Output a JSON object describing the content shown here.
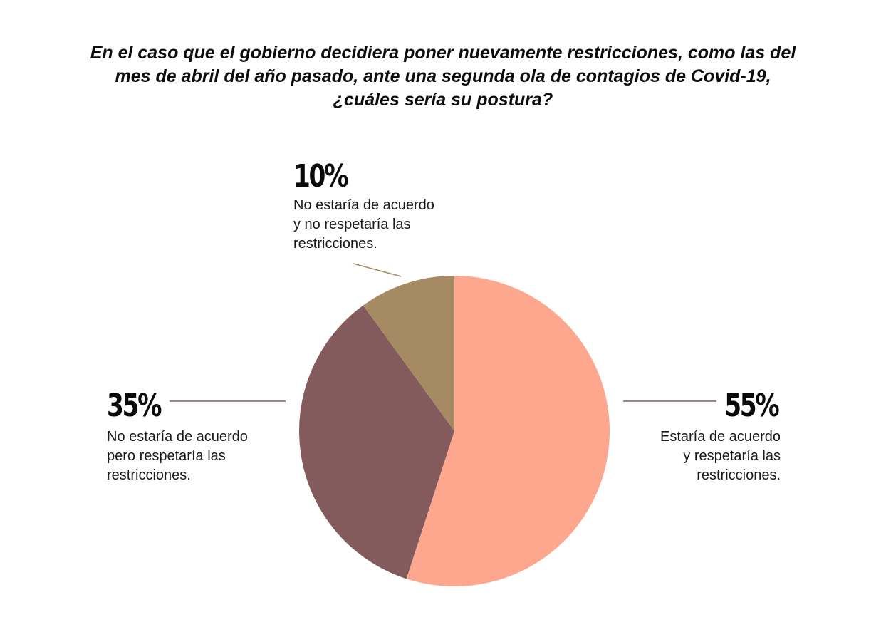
{
  "chart_data": {
    "type": "pie",
    "title_lines": [
      "En el caso que el gobierno decidiera poner nuevamente restricciones, como las del",
      "mes de abril del año pasado, ante una segunda ola de contagios de Covid-19,",
      "¿cuáles sería su postura?"
    ],
    "slices": [
      {
        "pct_label": "55%",
        "value": 55,
        "color": "#fda88e",
        "desc_lines": [
          "Estaría de acuerdo",
          "y respetaría las",
          "restricciones."
        ]
      },
      {
        "pct_label": "35%",
        "value": 35,
        "color": "#845b5d",
        "desc_lines": [
          "No estaría de acuerdo",
          "pero respetaría las",
          "restricciones."
        ]
      },
      {
        "pct_label": "10%",
        "value": 10,
        "color": "#a68a63",
        "desc_lines": [
          "No estaría de acuerdo",
          "y no respetaría las",
          "restricciones."
        ]
      }
    ]
  }
}
